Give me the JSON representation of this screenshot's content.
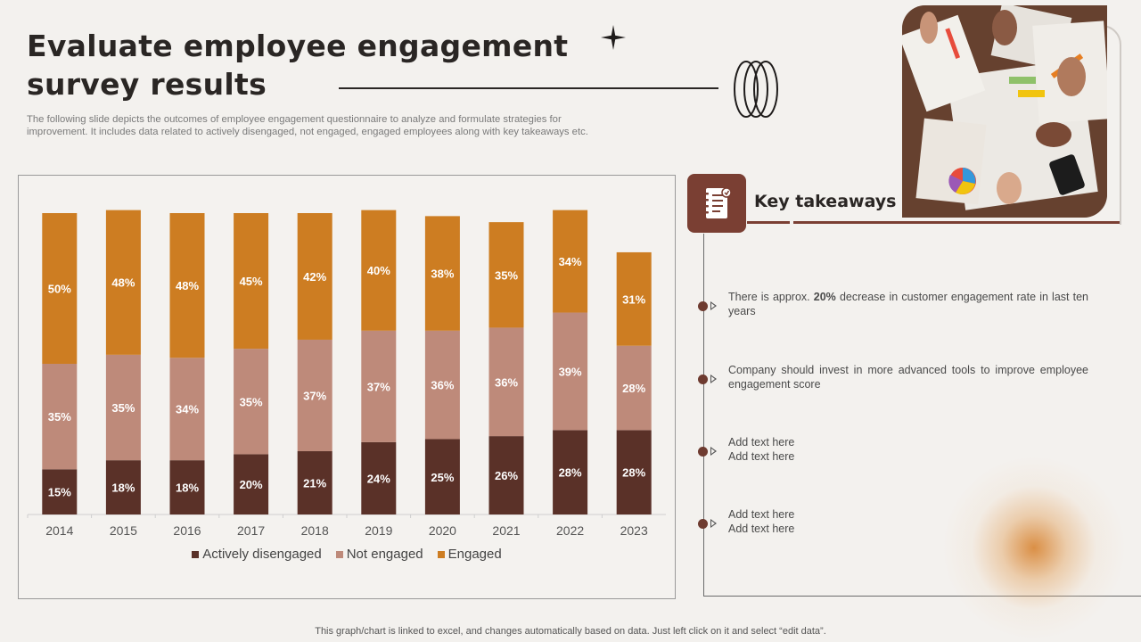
{
  "header": {
    "title_line1": "Evaluate employee engagement",
    "title_line2": "survey results",
    "description": "The following slide depicts the outcomes of employee engagement questionnaire to analyze and formulate strategies for improvement. It includes data related to actively disengaged, not engaged, engaged employees along with key takeaways etc."
  },
  "chart_data": {
    "type": "bar",
    "stacked": true,
    "categories": [
      "2014",
      "2015",
      "2016",
      "2017",
      "2018",
      "2019",
      "2020",
      "2021",
      "2022",
      "2023"
    ],
    "series": [
      {
        "name": "Actively disengaged",
        "color": "#5a3128",
        "values": [
          15,
          18,
          18,
          20,
          21,
          24,
          25,
          26,
          28,
          28
        ]
      },
      {
        "name": "Not engaged",
        "color": "#be8a7a",
        "values": [
          35,
          35,
          34,
          35,
          37,
          37,
          36,
          36,
          39,
          28
        ]
      },
      {
        "name": "Engaged",
        "color": "#cd7d22",
        "values": [
          50,
          48,
          48,
          45,
          42,
          40,
          38,
          35,
          34,
          31
        ]
      }
    ],
    "value_suffix": "%",
    "ylim": [
      0,
      100
    ],
    "legend_position": "bottom",
    "grid": false
  },
  "key_takeaways": {
    "title": "Key takeaways",
    "icon": "notebook-icon",
    "items": [
      {
        "pre": "There is approx. ",
        "bold": "20%",
        "post": " decrease in customer engagement rate in last ten years"
      },
      {
        "pre": "Company should invest in more advanced tools to improve employee engagement score",
        "bold": "",
        "post": ""
      },
      {
        "pre": "Add text here\nAdd text here",
        "bold": "",
        "post": ""
      },
      {
        "pre": "Add text here\nAdd text here",
        "bold": "",
        "post": ""
      }
    ]
  },
  "photo": {
    "icon": "team-meeting-photo"
  },
  "colors": {
    "accent": "#7a3f33",
    "background": "#f3f1ee"
  },
  "footer": "This graph/chart is linked to excel,  and changes automatically based on data. Just left click on it and select “edit data”."
}
